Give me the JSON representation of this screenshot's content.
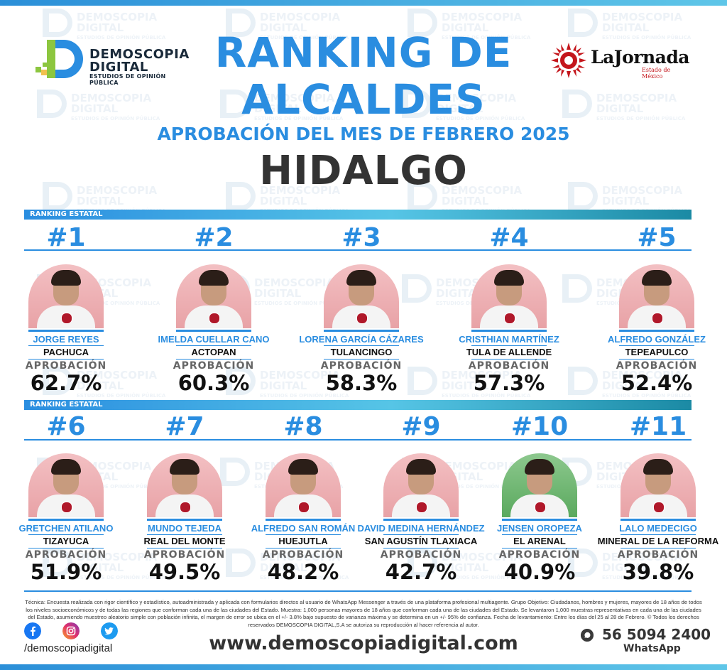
{
  "header": {
    "title_line1": "RANKING DE",
    "title_line2": "ALCALDES",
    "subtitle": "APROBACIÓN DEL MES DE FEBRERO 2025",
    "state": "HIDALGO"
  },
  "logo_left": {
    "line1": "DEMOSCOPIA",
    "line2": "DIGITAL",
    "line3": "ESTUDIOS DE OPINIÓN PÚBLICA"
  },
  "logo_right": {
    "name": "LaJornada",
    "sub": "Estado de México"
  },
  "watermark": {
    "line1": "DEMOSCOPIA",
    "line2": "DIGITAL",
    "line3": "ESTUDIOS DE OPINIÓN PÚBLICA"
  },
  "section_label": "RANKING ESTATAL",
  "approval_label": "APROBACIÓN",
  "rows": [
    {
      "section_label": "RANKING ESTATAL",
      "items": [
        {
          "rank": "#1",
          "name": "JORGE REYES",
          "city": "PACHUCA",
          "approval": "62.7%",
          "approval_value": 62.7
        },
        {
          "rank": "#2",
          "name": "IMELDA CUELLAR CANO",
          "city": "ACTOPAN",
          "approval": "60.3%",
          "approval_value": 60.3
        },
        {
          "rank": "#3",
          "name": "LORENA GARCÍA CÁZARES",
          "city": "TULANCINGO",
          "approval": "58.3%",
          "approval_value": 58.3
        },
        {
          "rank": "#4",
          "name": "CRISTHIAN MARTÍNEZ",
          "city": "TULA DE ALLENDE",
          "approval": "57.3%",
          "approval_value": 57.3
        },
        {
          "rank": "#5",
          "name": "ALFREDO GONZÁLEZ",
          "city": "TEPEAPULCO",
          "approval": "52.4%",
          "approval_value": 52.4
        }
      ]
    },
    {
      "section_label": "RANKING ESTATAL",
      "items": [
        {
          "rank": "#6",
          "name": "GRETCHEN ATILANO",
          "city": "TIZAYUCA",
          "approval": "51.9%",
          "approval_value": 51.9
        },
        {
          "rank": "#7",
          "name": "MUNDO TEJEDA",
          "city": "REAL DEL MONTE",
          "approval": "49.5%",
          "approval_value": 49.5
        },
        {
          "rank": "#8",
          "name": "ALFREDO SAN ROMÁN",
          "city": "HUEJUTLA",
          "approval": "48.2%",
          "approval_value": 48.2
        },
        {
          "rank": "#9",
          "name": "DAVID MEDINA HERNÁNDEZ",
          "city": "SAN AGUSTÍN TLAXIACA",
          "approval": "42.7%",
          "approval_value": 42.7
        },
        {
          "rank": "#10",
          "name": "JENSEN OROPEZA",
          "city": "EL ARENAL",
          "approval": "40.9%",
          "approval_value": 40.9
        },
        {
          "rank": "#11",
          "name": "LALO MEDECIGO",
          "city": "MINERAL DE LA REFORMA",
          "approval": "39.8%",
          "approval_value": 39.8
        }
      ]
    }
  ],
  "footer": {
    "technical": "Técnica: Encuesta realizada con rigor científico y estadístico, autoadministrada y aplicada con formularios directos al usuario de WhatsApp Messenger a través de una plataforma profesional multiagente. Grupo Objetivo: Ciudadanos, hombres y mujeres, mayores de 18 años de todos los niveles socioeconómicos y de todas las regiones que conforman cada una de las ciudades del Estado. Muestra: 1,000 personas mayores de 18 años que conforman cada una de las ciudades del Estado. Se levantaron 1,000 muestras representativas en cada una de las ciudades del Estado, asumiendo muestreo aleatorio simple con población infinita, el margen de error se ubica en el +/- 3.8% bajo supuesto de varianza máxima y se determina en un +/- 95% de confianza. Fecha de levantamiento: Entre los días del 25 al 28 de Febrero. © Todos los derechos reservados DEMOSCOPIA DIGITAL,S.A se autoriza su reproducción al hacer referencia al autor.",
    "handle": "/demoscopiadigital",
    "website": "www.demoscopiadigital.com",
    "phone": "56 5094 2400",
    "whatsapp_label": "WhatsApp",
    "icons": [
      "facebook-icon",
      "instagram-icon",
      "twitter-icon",
      "whatsapp-icon"
    ]
  },
  "colors": {
    "accent": "#2a8de0",
    "photo_bg": "#f3c0c3",
    "photo_bg_green": "#8dc88e",
    "party_badge": "#b0182a",
    "jornada_red": "#c4161c"
  }
}
